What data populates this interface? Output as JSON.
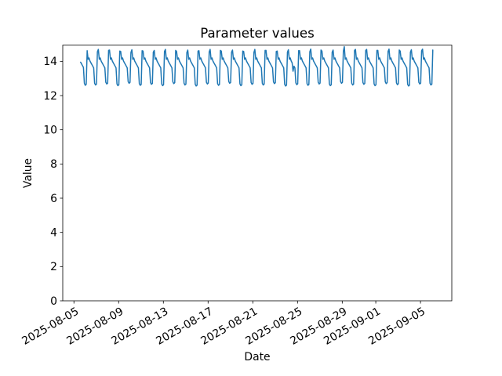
{
  "chart_data": {
    "type": "line",
    "title": "Parameter values",
    "xlabel": "Date",
    "ylabel": "Value",
    "line_color": "#1f77b4",
    "grid": false,
    "legend": null,
    "x_unit": "days since 2025-08-05",
    "xlim": [
      -1.0,
      33.8
    ],
    "ylim": [
      0,
      14.95
    ],
    "y_ticks": [
      0,
      2,
      4,
      6,
      8,
      10,
      12,
      14
    ],
    "x_ticks": [
      {
        "pos": 0,
        "label": "2025-08-05"
      },
      {
        "pos": 4,
        "label": "2025-08-09"
      },
      {
        "pos": 8,
        "label": "2025-08-13"
      },
      {
        "pos": 12,
        "label": "2025-08-17"
      },
      {
        "pos": 16,
        "label": "2025-08-21"
      },
      {
        "pos": 20,
        "label": "2025-08-25"
      },
      {
        "pos": 24,
        "label": "2025-08-29"
      },
      {
        "pos": 27,
        "label": "2025-09-01"
      },
      {
        "pos": 31,
        "label": "2025-09-05"
      }
    ],
    "series": {
      "name": "Parameter",
      "start_day": 0.6,
      "step_days": 0.0833333,
      "values": [
        13.95,
        13.85,
        13.75,
        13.65,
        12.72,
        12.6,
        12.66,
        14.62,
        14.12,
        14.2,
        14.02,
        13.92,
        13.82,
        13.72,
        13.62,
        12.72,
        12.62,
        12.67,
        14.56,
        14.7,
        14.12,
        14.2,
        14.02,
        13.92,
        13.82,
        13.72,
        13.62,
        12.78,
        12.68,
        12.73,
        14.64,
        14.66,
        14.12,
        14.2,
        14.02,
        13.92,
        13.82,
        13.72,
        13.62,
        12.68,
        12.58,
        12.63,
        14.6,
        14.58,
        14.12,
        14.2,
        14.02,
        13.92,
        13.82,
        13.72,
        13.62,
        12.82,
        12.72,
        12.77,
        14.52,
        14.68,
        14.12,
        14.2,
        14.02,
        13.92,
        13.82,
        13.72,
        13.62,
        12.7,
        12.6,
        12.65,
        14.62,
        14.6,
        14.12,
        14.2,
        14.02,
        13.92,
        13.82,
        13.72,
        13.62,
        12.76,
        12.66,
        12.71,
        14.54,
        14.64,
        14.12,
        14.2,
        14.02,
        13.92,
        13.82,
        13.72,
        13.62,
        12.68,
        12.58,
        12.63,
        14.58,
        14.7,
        14.12,
        14.2,
        14.02,
        13.92,
        13.82,
        13.72,
        13.62,
        12.8,
        12.7,
        12.75,
        14.64,
        14.58,
        14.12,
        14.2,
        14.02,
        13.92,
        13.82,
        13.72,
        13.62,
        12.72,
        12.62,
        12.67,
        14.52,
        14.66,
        14.12,
        14.2,
        14.02,
        13.92,
        13.82,
        13.72,
        13.62,
        12.66,
        12.56,
        12.61,
        14.6,
        14.62,
        14.12,
        14.2,
        14.02,
        13.92,
        13.82,
        13.72,
        13.62,
        12.78,
        12.68,
        12.73,
        14.56,
        14.7,
        14.12,
        14.2,
        14.02,
        13.92,
        13.82,
        13.72,
        13.62,
        12.7,
        12.6,
        12.65,
        14.64,
        14.6,
        14.12,
        14.2,
        14.02,
        13.92,
        13.82,
        13.72,
        13.62,
        12.82,
        12.72,
        12.77,
        14.54,
        14.66,
        14.12,
        14.2,
        14.02,
        13.92,
        13.82,
        13.72,
        13.62,
        12.68,
        12.58,
        12.63,
        14.6,
        14.58,
        14.12,
        14.2,
        14.02,
        13.92,
        13.82,
        13.72,
        13.62,
        12.76,
        12.66,
        12.71,
        14.52,
        14.7,
        14.12,
        14.2,
        14.02,
        13.92,
        13.82,
        13.72,
        13.62,
        12.72,
        12.62,
        12.67,
        14.64,
        14.64,
        14.12,
        14.2,
        14.02,
        13.92,
        13.82,
        13.72,
        13.62,
        12.8,
        12.7,
        12.75,
        14.58,
        14.6,
        14.12,
        14.2,
        14.02,
        13.92,
        13.82,
        13.72,
        13.62,
        12.66,
        12.56,
        12.61,
        14.54,
        14.68,
        14.12,
        14.2,
        14.02,
        13.92,
        13.42,
        13.72,
        13.62,
        12.74,
        12.64,
        12.69,
        14.62,
        14.62,
        14.12,
        14.2,
        14.02,
        13.92,
        13.82,
        13.72,
        13.62,
        12.7,
        12.6,
        12.65,
        14.56,
        14.72,
        14.12,
        14.2,
        14.02,
        13.92,
        13.82,
        13.72,
        13.62,
        12.78,
        12.68,
        12.73,
        14.66,
        14.6,
        14.12,
        14.2,
        14.02,
        13.92,
        13.82,
        13.72,
        13.62,
        12.68,
        12.58,
        12.63,
        14.54,
        14.66,
        14.12,
        14.2,
        14.02,
        13.92,
        13.82,
        13.72,
        13.62,
        12.82,
        12.72,
        12.77,
        14.6,
        14.86,
        14.12,
        14.2,
        14.02,
        13.92,
        13.82,
        13.72,
        13.62,
        12.72,
        12.62,
        12.67,
        14.64,
        14.7,
        14.12,
        14.2,
        14.02,
        13.92,
        13.82,
        13.72,
        13.62,
        12.76,
        12.66,
        12.71,
        14.64,
        14.7,
        14.12,
        14.2,
        14.02,
        13.92,
        13.82,
        13.72,
        13.62,
        12.68,
        12.58,
        12.63,
        14.64,
        14.64,
        14.12,
        14.2,
        14.02,
        13.92,
        13.82,
        13.72,
        13.62,
        12.8,
        12.7,
        12.75,
        14.58,
        14.72,
        14.12,
        14.2,
        14.02,
        13.92,
        13.82,
        13.72,
        13.62,
        12.74,
        12.64,
        12.69,
        14.66,
        14.6,
        14.12,
        14.2,
        14.02,
        13.92,
        13.82,
        13.72,
        13.62,
        12.66,
        12.56,
        12.61,
        14.54,
        14.68,
        14.12,
        14.2,
        14.02,
        13.92,
        13.82,
        13.72,
        13.62,
        12.78,
        12.68,
        12.73,
        14.62,
        14.72,
        14.12,
        14.2,
        14.02,
        13.92,
        13.82,
        13.72,
        13.62,
        12.72,
        12.62,
        12.67,
        14.66
      ]
    }
  }
}
